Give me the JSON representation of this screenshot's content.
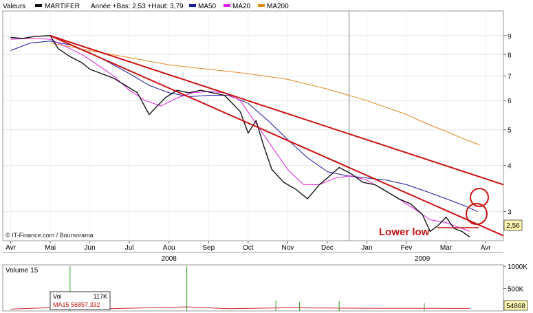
{
  "header": {
    "label": "Valeurs",
    "ticker": "MARTIFER",
    "range_text": "Année +Bas: 2,53 +Haut: 3,79",
    "legend": [
      {
        "name": "MA50",
        "color": "#1a1a9e"
      },
      {
        "name": "MA20",
        "color": "#e020e0"
      },
      {
        "name": "MA200",
        "color": "#e08a20"
      }
    ]
  },
  "credit": "© IT-Finance.com / Boursorama",
  "annotation": "Lower low",
  "last_value_label": "2,56",
  "chart_data": {
    "type": "line",
    "y_scale": "log",
    "ylim": [
      2.5,
      10.5
    ],
    "y_ticks": [
      "9",
      "8",
      "7",
      "6",
      "5",
      "4",
      "3"
    ],
    "y_tick_values": [
      9,
      8,
      7,
      6,
      5,
      4,
      3
    ],
    "x_months": [
      "Avr",
      "Mai",
      "Jun",
      "Jul",
      "Aou",
      "Sep",
      "Oct",
      "Nov",
      "Dec",
      "Jan",
      "Fev",
      "Mar",
      "Avr"
    ],
    "x_years": [
      "2008",
      "2009"
    ],
    "x_months_index": [
      0,
      1,
      2,
      3,
      4,
      5,
      6,
      7,
      8,
      9,
      10,
      11,
      12
    ],
    "x_range": [
      -0.2,
      12.45
    ],
    "year_divider_index": 8.55,
    "series": [
      {
        "name": "MARTIFER",
        "color": "#111111",
        "x": [
          0,
          0.3,
          0.6,
          0.9,
          1.0,
          1.2,
          1.5,
          1.8,
          2.0,
          2.3,
          2.6,
          2.9,
          3.2,
          3.5,
          3.9,
          4.2,
          4.5,
          4.8,
          5.1,
          5.4,
          5.6,
          5.8,
          6.0,
          6.2,
          6.4,
          6.6,
          6.9,
          7.2,
          7.5,
          7.8,
          8.0,
          8.3,
          8.6,
          8.9,
          9.2,
          9.5,
          9.8,
          10.1,
          10.4,
          10.6,
          10.8,
          11.0,
          11.2,
          11.4,
          11.6
        ],
        "y": [
          8.9,
          8.85,
          8.95,
          9.0,
          9.0,
          8.3,
          7.9,
          7.6,
          7.3,
          7.1,
          6.9,
          6.6,
          6.3,
          5.5,
          6.1,
          6.4,
          6.3,
          6.4,
          6.3,
          6.2,
          5.9,
          5.6,
          4.9,
          5.3,
          4.5,
          3.9,
          3.6,
          3.45,
          3.25,
          3.55,
          3.7,
          3.95,
          3.8,
          3.6,
          3.55,
          3.4,
          3.25,
          3.15,
          2.95,
          2.65,
          2.75,
          2.9,
          2.7,
          2.65,
          2.56
        ]
      },
      {
        "name": "MA20",
        "color": "#e020e0",
        "x": [
          0,
          0.6,
          1.0,
          1.4,
          1.8,
          2.2,
          2.6,
          3.0,
          3.4,
          3.8,
          4.2,
          4.6,
          5.0,
          5.4,
          5.8,
          6.2,
          6.6,
          7.0,
          7.4,
          7.8,
          8.2,
          8.6,
          9.0,
          9.4,
          9.8,
          10.2,
          10.6,
          11.0,
          11.4,
          11.6
        ],
        "y": [
          8.8,
          8.85,
          8.8,
          8.4,
          8.0,
          7.5,
          7.0,
          6.4,
          6.0,
          5.8,
          6.1,
          6.3,
          6.35,
          6.3,
          6.0,
          5.2,
          4.5,
          3.9,
          3.55,
          3.55,
          3.7,
          3.75,
          3.65,
          3.45,
          3.25,
          3.05,
          2.85,
          2.8,
          2.7,
          2.65
        ]
      },
      {
        "name": "MA50",
        "color": "#1a1a9e",
        "x": [
          0,
          0.5,
          1.0,
          1.5,
          2.0,
          2.5,
          3.0,
          3.5,
          4.0,
          4.5,
          5.0,
          5.5,
          6.0,
          6.5,
          7.0,
          7.5,
          8.0,
          8.5,
          9.0,
          9.5,
          10.0,
          10.5,
          11.0,
          11.5,
          11.8
        ],
        "y": [
          8.2,
          8.6,
          8.7,
          8.5,
          8.1,
          7.6,
          7.1,
          6.6,
          6.3,
          6.15,
          6.2,
          6.2,
          5.9,
          5.3,
          4.7,
          4.2,
          3.85,
          3.75,
          3.7,
          3.65,
          3.55,
          3.4,
          3.25,
          3.1,
          3.0
        ]
      },
      {
        "name": "MA200",
        "color": "#e08a20",
        "x": [
          1.0,
          2.0,
          3.0,
          4.0,
          5.0,
          6.0,
          7.0,
          8.0,
          9.0,
          10.0,
          10.5,
          11.0,
          11.5,
          11.85
        ],
        "y": [
          8.6,
          8.2,
          7.85,
          7.5,
          7.3,
          7.1,
          6.85,
          6.45,
          6.0,
          5.5,
          5.2,
          4.95,
          4.7,
          4.55
        ]
      }
    ],
    "trendlines": [
      {
        "color": "#cc1111",
        "x": [
          1.0,
          12.45
        ],
        "y": [
          9.0,
          3.55
        ]
      },
      {
        "color": "#cc1111",
        "x": [
          1.0,
          12.45
        ],
        "y": [
          9.0,
          2.58
        ]
      }
    ],
    "volume": {
      "title": "Volume 15",
      "ylim": [
        0,
        1000000
      ],
      "y_ticks": [
        "1000K",
        "500K"
      ],
      "y_tick_values": [
        1000000,
        500000
      ],
      "last_label": "54868",
      "vol_text": "117K",
      "vol_label": "Vol",
      "ma_text": "MA15 56857,332",
      "spikes": [
        {
          "x": 1.5,
          "v": 1000000
        },
        {
          "x": 4.45,
          "v": 1000000
        },
        {
          "x": 6.7,
          "v": 230000
        },
        {
          "x": 7.3,
          "v": 200000
        },
        {
          "x": 8.3,
          "v": 220000
        },
        {
          "x": 10.45,
          "v": 180000
        }
      ],
      "ma15": [
        {
          "x": 0,
          "v": 40000
        },
        {
          "x": 1.5,
          "v": 90000
        },
        {
          "x": 2.5,
          "v": 50000
        },
        {
          "x": 4.45,
          "v": 90000
        },
        {
          "x": 5.5,
          "v": 50000
        },
        {
          "x": 7.0,
          "v": 70000
        },
        {
          "x": 9.0,
          "v": 60000
        },
        {
          "x": 11.6,
          "v": 55000
        }
      ]
    }
  }
}
